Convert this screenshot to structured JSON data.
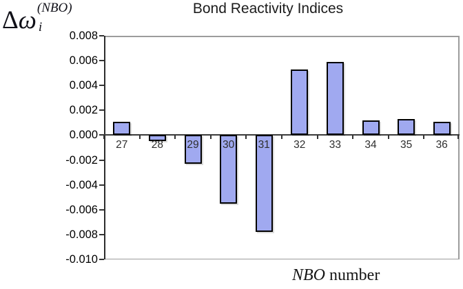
{
  "header": {
    "title": "Bond Reactivity Indices"
  },
  "y_axis_label": {
    "delta": "Δ",
    "omega": "ω",
    "superscript": "(NBO)",
    "subscript": "i"
  },
  "x_axis_label": {
    "italic_part": "NBO",
    "normal_part": " number"
  },
  "chart_data": {
    "type": "bar",
    "title": "Bond Reactivity Indices",
    "xlabel": "NBO number",
    "ylabel": "Δω_i^(NBO)",
    "categories": [
      "27",
      "28",
      "29",
      "30",
      "31",
      "32",
      "33",
      "34",
      "35",
      "36"
    ],
    "values": [
      0.0011,
      -0.0005,
      -0.0023,
      -0.0055,
      -0.0078,
      0.0053,
      0.0059,
      0.0012,
      0.0013,
      0.0011
    ],
    "ylim": [
      -0.01,
      0.008
    ],
    "ytick_step": 0.002,
    "ytick_values": [
      0.008,
      0.006,
      0.004,
      0.002,
      0.0,
      -0.002,
      -0.004,
      -0.006,
      -0.008,
      -0.01
    ],
    "ytick_labels": [
      "0.008",
      "0.006",
      "0.004",
      "0.002",
      "0.000",
      "-0.002",
      "-0.004",
      "-0.006",
      "-0.008",
      "-0.010"
    ],
    "grid": false,
    "legend": false,
    "bar_color": "#a0a9f0",
    "bar_border_color": "#000000",
    "axis_line_color": "#3a3a3a",
    "frame_color": "#9c9c9c",
    "tick_color": "#333333"
  }
}
